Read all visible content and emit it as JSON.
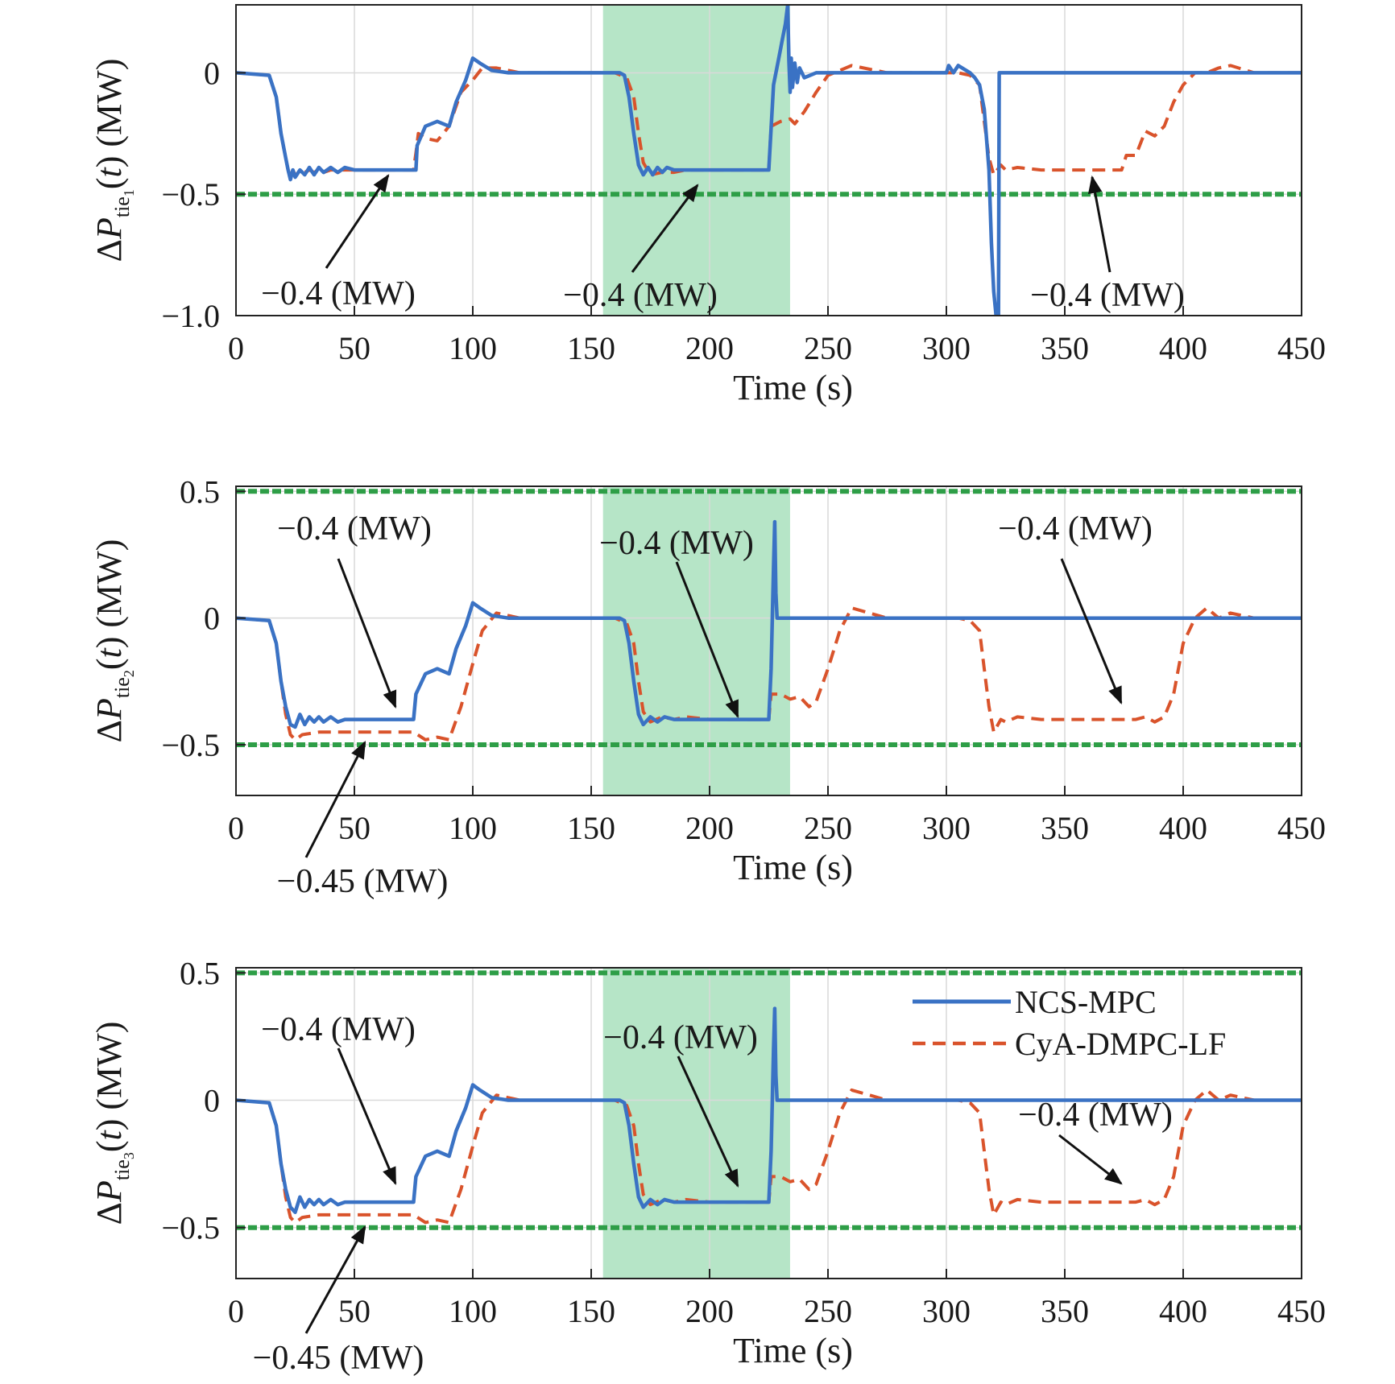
{
  "colors": {
    "ncs": "#3a72c4",
    "cya": "#d9532b",
    "limit": "#2e9e47",
    "shade": "#a9e0bd",
    "grid": "#d9d9d9",
    "axis": "#222222",
    "arrow": "#111111"
  },
  "legend": {
    "ncs_label": "NCS-MPC",
    "cya_label": "CyA-DMPC-LF",
    "placement": "top-right of panel 3"
  },
  "chart_data": [
    {
      "type": "line",
      "ylabel_prefix": "ΔP",
      "ylabel_sub": "tie",
      "ylabel_subsub": "1",
      "ylabel_suffix": "(t) (MW)",
      "xlabel": "Time (s)",
      "xlim": [
        0,
        450
      ],
      "ylim": [
        -1.0,
        0.28
      ],
      "xticks": [
        0,
        50,
        100,
        150,
        200,
        250,
        300,
        350,
        400,
        450
      ],
      "xtick_labels": [
        "0",
        "50",
        "100",
        "150",
        "200",
        "250",
        "300",
        "350",
        "400",
        "450"
      ],
      "yticks": [
        0,
        -0.5,
        -1.0
      ],
      "ytick_labels": [
        "0",
        "−0.5",
        "−1.0"
      ],
      "grid": true,
      "shaded_x": [
        155,
        234
      ],
      "limits": [
        -0.5
      ],
      "series": [
        {
          "name": "NCS-MPC",
          "style": "solid",
          "x": [
            0,
            14,
            17,
            19,
            21,
            22,
            23,
            24,
            25,
            27,
            29,
            31,
            33,
            35,
            37,
            40,
            43,
            46,
            50,
            55,
            60,
            65,
            70,
            76,
            76.5,
            80,
            85,
            90,
            93,
            97,
            100,
            103,
            108,
            115,
            125,
            140,
            150,
            162,
            164,
            166,
            168,
            170,
            172,
            174,
            176,
            178,
            180,
            182,
            185,
            190,
            200,
            210,
            225,
            227,
            229,
            231,
            232,
            233,
            233.5,
            234,
            234.5,
            235,
            236,
            237,
            238,
            240,
            245,
            250,
            260,
            280,
            300,
            301,
            303,
            305,
            310,
            312,
            314,
            316,
            318,
            319,
            320,
            321,
            322,
            322.3,
            330,
            350,
            400,
            450
          ],
          "y": [
            0,
            -0.01,
            -0.1,
            -0.25,
            -0.35,
            -0.4,
            -0.44,
            -0.4,
            -0.43,
            -0.4,
            -0.42,
            -0.39,
            -0.42,
            -0.39,
            -0.41,
            -0.39,
            -0.41,
            -0.39,
            -0.4,
            -0.4,
            -0.4,
            -0.4,
            -0.4,
            -0.4,
            -0.3,
            -0.22,
            -0.2,
            -0.22,
            -0.12,
            -0.03,
            0.06,
            0.04,
            0.01,
            0.0,
            0.0,
            0.0,
            0.0,
            0.0,
            -0.01,
            -0.1,
            -0.25,
            -0.38,
            -0.42,
            -0.39,
            -0.42,
            -0.39,
            -0.41,
            -0.39,
            -0.4,
            -0.4,
            -0.4,
            -0.4,
            -0.4,
            -0.05,
            0.05,
            0.15,
            0.2,
            0.28,
            0.05,
            -0.08,
            0.06,
            -0.06,
            0.04,
            -0.04,
            0.02,
            -0.02,
            0.0,
            0.0,
            0.0,
            0.0,
            0.0,
            0.03,
            0.0,
            0.03,
            0.0,
            -0.02,
            -0.05,
            -0.15,
            -0.4,
            -0.7,
            -0.9,
            -1.0,
            -1.0,
            0.0,
            0.0,
            0.0,
            0.0,
            0.0
          ]
        },
        {
          "name": "CyA-DMPC-LF",
          "style": "dashed",
          "x": [
            0,
            14,
            17,
            19,
            21,
            22,
            23,
            24,
            25,
            27,
            29,
            31,
            33,
            35,
            37,
            40,
            43,
            46,
            50,
            55,
            60,
            65,
            70,
            75,
            76,
            77,
            80,
            85,
            90,
            95,
            100,
            104,
            110,
            120,
            140,
            160,
            165,
            168,
            170,
            172,
            175,
            180,
            185,
            190,
            200,
            210,
            220,
            225,
            226,
            230,
            234,
            236,
            240,
            245,
            250,
            260,
            275,
            290,
            305,
            310,
            314,
            316,
            318,
            320,
            323,
            325,
            330,
            340,
            350,
            360,
            370,
            374,
            376,
            380,
            384,
            388,
            392,
            396,
            400,
            405,
            410,
            415,
            420,
            430,
            450
          ],
          "y": [
            0,
            -0.01,
            -0.1,
            -0.25,
            -0.35,
            -0.4,
            -0.43,
            -0.4,
            -0.42,
            -0.41,
            -0.41,
            -0.4,
            -0.41,
            -0.4,
            -0.41,
            -0.4,
            -0.4,
            -0.4,
            -0.4,
            -0.4,
            -0.4,
            -0.4,
            -0.4,
            -0.4,
            -0.33,
            -0.25,
            -0.27,
            -0.28,
            -0.22,
            -0.08,
            -0.03,
            0.02,
            0.02,
            0.0,
            0.0,
            0.0,
            -0.02,
            -0.1,
            -0.25,
            -0.37,
            -0.42,
            -0.41,
            -0.41,
            -0.4,
            -0.4,
            -0.4,
            -0.4,
            -0.4,
            -0.22,
            -0.2,
            -0.19,
            -0.21,
            -0.16,
            -0.08,
            -0.01,
            0.03,
            0.0,
            0.0,
            0.0,
            -0.01,
            -0.05,
            -0.2,
            -0.35,
            -0.42,
            -0.38,
            -0.4,
            -0.39,
            -0.4,
            -0.4,
            -0.4,
            -0.4,
            -0.4,
            -0.34,
            -0.34,
            -0.24,
            -0.26,
            -0.22,
            -0.12,
            -0.05,
            0.0,
            0.0,
            0.02,
            0.03,
            0.0,
            0.0
          ]
        }
      ],
      "annotations": [
        {
          "text": "−0.4 (MW)"
        },
        {
          "text": "−0.4 (MW)"
        },
        {
          "text": "−0.4 (MW)"
        }
      ]
    },
    {
      "type": "line",
      "ylabel_prefix": "ΔP",
      "ylabel_sub": "tie",
      "ylabel_subsub": "2",
      "ylabel_suffix": "(t) (MW)",
      "xlabel": "Time (s)",
      "xlim": [
        0,
        450
      ],
      "ylim": [
        -0.7,
        0.52
      ],
      "xticks": [
        0,
        50,
        100,
        150,
        200,
        250,
        300,
        350,
        400,
        450
      ],
      "xtick_labels": [
        "0",
        "50",
        "100",
        "150",
        "200",
        "250",
        "300",
        "350",
        "400",
        "450"
      ],
      "yticks": [
        0.5,
        0,
        -0.5
      ],
      "ytick_labels": [
        "0.5",
        "0",
        "−0.5"
      ],
      "grid": true,
      "shaded_x": [
        155,
        234
      ],
      "limits": [
        0.5,
        -0.5
      ],
      "series": [
        {
          "name": "NCS-MPC",
          "style": "solid",
          "x": [
            0,
            14,
            17,
            19,
            21,
            23,
            25,
            27,
            29,
            31,
            33,
            35,
            37,
            40,
            43,
            46,
            50,
            55,
            60,
            65,
            70,
            75,
            76,
            80,
            85,
            90,
            93,
            97,
            100,
            103,
            108,
            115,
            125,
            140,
            150,
            162,
            164,
            166,
            168,
            170,
            172,
            175,
            178,
            181,
            185,
            190,
            200,
            210,
            220,
            225,
            226,
            227,
            227.5,
            228,
            228.5,
            230,
            240,
            260,
            300,
            450
          ],
          "y": [
            0,
            -0.01,
            -0.1,
            -0.25,
            -0.35,
            -0.42,
            -0.43,
            -0.38,
            -0.42,
            -0.39,
            -0.41,
            -0.39,
            -0.41,
            -0.39,
            -0.41,
            -0.4,
            -0.4,
            -0.4,
            -0.4,
            -0.4,
            -0.4,
            -0.4,
            -0.3,
            -0.22,
            -0.2,
            -0.22,
            -0.12,
            -0.03,
            0.06,
            0.04,
            0.01,
            0.0,
            0.0,
            0.0,
            0.0,
            0.0,
            -0.01,
            -0.1,
            -0.25,
            -0.38,
            -0.42,
            -0.39,
            -0.41,
            -0.39,
            -0.4,
            -0.4,
            -0.4,
            -0.4,
            -0.4,
            -0.4,
            -0.2,
            0.2,
            0.38,
            0.1,
            0.0,
            0.0,
            0.0,
            0.0,
            0.0,
            0.0
          ]
        },
        {
          "name": "CyA-DMPC-LF",
          "style": "dashed",
          "x": [
            0,
            14,
            17,
            19,
            21,
            23,
            25,
            28,
            35,
            45,
            55,
            65,
            75,
            80,
            85,
            90,
            95,
            100,
            104,
            110,
            120,
            140,
            160,
            165,
            168,
            170,
            172,
            175,
            180,
            185,
            190,
            200,
            210,
            220,
            225,
            226,
            230,
            234,
            238,
            242,
            245,
            250,
            255,
            260,
            275,
            290,
            305,
            310,
            314,
            316,
            318,
            320,
            323,
            325,
            330,
            340,
            350,
            360,
            370,
            380,
            384,
            388,
            392,
            396,
            400,
            405,
            410,
            415,
            420,
            430,
            450
          ],
          "y": [
            0,
            -0.01,
            -0.1,
            -0.25,
            -0.38,
            -0.46,
            -0.48,
            -0.46,
            -0.45,
            -0.45,
            -0.45,
            -0.45,
            -0.45,
            -0.48,
            -0.47,
            -0.48,
            -0.35,
            -0.18,
            -0.05,
            0.02,
            0.0,
            0.0,
            0.0,
            -0.02,
            -0.1,
            -0.25,
            -0.37,
            -0.41,
            -0.39,
            -0.4,
            -0.39,
            -0.4,
            -0.4,
            -0.4,
            -0.4,
            -0.3,
            -0.3,
            -0.32,
            -0.31,
            -0.35,
            -0.33,
            -0.2,
            -0.05,
            0.04,
            0.0,
            0.0,
            0.0,
            -0.01,
            -0.05,
            -0.2,
            -0.35,
            -0.45,
            -0.4,
            -0.41,
            -0.39,
            -0.4,
            -0.4,
            -0.4,
            -0.4,
            -0.4,
            -0.39,
            -0.41,
            -0.39,
            -0.3,
            -0.1,
            0.0,
            0.04,
            0.0,
            0.02,
            0.0,
            0.0
          ]
        }
      ],
      "annotations": [
        {
          "text": "−0.4 (MW)"
        },
        {
          "text": "−0.45 (MW)"
        },
        {
          "text": "−0.4 (MW)"
        },
        {
          "text": "−0.4 (MW)"
        }
      ]
    },
    {
      "type": "line",
      "ylabel_prefix": "ΔP",
      "ylabel_sub": "tie",
      "ylabel_subsub": "3",
      "ylabel_suffix": "(t) (MW)",
      "xlabel": "Time (s)",
      "xlim": [
        0,
        450
      ],
      "ylim": [
        -0.7,
        0.52
      ],
      "xticks": [
        0,
        50,
        100,
        150,
        200,
        250,
        300,
        350,
        400,
        450
      ],
      "xtick_labels": [
        "0",
        "50",
        "100",
        "150",
        "200",
        "250",
        "300",
        "350",
        "400",
        "450"
      ],
      "yticks": [
        0.5,
        0,
        -0.5
      ],
      "ytick_labels": [
        "0.5",
        "0",
        "−0.5"
      ],
      "grid": true,
      "shaded_x": [
        155,
        234
      ],
      "limits": [
        0.5,
        -0.5
      ],
      "series": [
        {
          "name": "NCS-MPC",
          "style": "solid",
          "x": [
            0,
            14,
            17,
            19,
            21,
            23,
            25,
            27,
            29,
            31,
            33,
            35,
            37,
            40,
            43,
            46,
            50,
            55,
            60,
            65,
            70,
            75,
            76,
            80,
            85,
            90,
            93,
            97,
            100,
            103,
            108,
            115,
            125,
            140,
            150,
            162,
            164,
            166,
            168,
            170,
            172,
            175,
            178,
            181,
            185,
            190,
            200,
            210,
            220,
            225,
            226,
            227,
            227.5,
            228,
            228.5,
            230,
            240,
            260,
            300,
            450
          ],
          "y": [
            0,
            -0.01,
            -0.1,
            -0.25,
            -0.35,
            -0.42,
            -0.44,
            -0.38,
            -0.42,
            -0.39,
            -0.41,
            -0.39,
            -0.41,
            -0.39,
            -0.41,
            -0.4,
            -0.4,
            -0.4,
            -0.4,
            -0.4,
            -0.4,
            -0.4,
            -0.3,
            -0.22,
            -0.2,
            -0.22,
            -0.12,
            -0.03,
            0.06,
            0.04,
            0.01,
            0.0,
            0.0,
            0.0,
            0.0,
            0.0,
            -0.01,
            -0.1,
            -0.25,
            -0.38,
            -0.42,
            -0.39,
            -0.41,
            -0.39,
            -0.4,
            -0.4,
            -0.4,
            -0.4,
            -0.4,
            -0.4,
            -0.2,
            0.2,
            0.36,
            0.1,
            0.0,
            0.0,
            0.0,
            0.0,
            0.0,
            0.0
          ]
        },
        {
          "name": "CyA-DMPC-LF",
          "style": "dashed",
          "x": [
            0,
            14,
            17,
            19,
            21,
            23,
            25,
            28,
            35,
            45,
            55,
            65,
            75,
            80,
            85,
            90,
            95,
            100,
            104,
            110,
            120,
            140,
            160,
            165,
            168,
            170,
            172,
            175,
            180,
            185,
            190,
            200,
            210,
            220,
            225,
            226,
            230,
            234,
            238,
            242,
            245,
            250,
            255,
            260,
            275,
            290,
            305,
            310,
            314,
            316,
            318,
            320,
            323,
            325,
            330,
            340,
            350,
            360,
            370,
            380,
            384,
            388,
            392,
            396,
            400,
            405,
            410,
            415,
            420,
            430,
            450
          ],
          "y": [
            0,
            -0.01,
            -0.1,
            -0.25,
            -0.38,
            -0.46,
            -0.48,
            -0.46,
            -0.45,
            -0.45,
            -0.45,
            -0.45,
            -0.45,
            -0.48,
            -0.47,
            -0.48,
            -0.35,
            -0.18,
            -0.05,
            0.02,
            0.0,
            0.0,
            0.0,
            -0.02,
            -0.1,
            -0.25,
            -0.37,
            -0.41,
            -0.39,
            -0.4,
            -0.39,
            -0.4,
            -0.4,
            -0.4,
            -0.4,
            -0.3,
            -0.3,
            -0.32,
            -0.31,
            -0.35,
            -0.33,
            -0.2,
            -0.05,
            0.04,
            0.0,
            0.0,
            0.0,
            -0.01,
            -0.05,
            -0.2,
            -0.35,
            -0.45,
            -0.4,
            -0.41,
            -0.39,
            -0.4,
            -0.4,
            -0.4,
            -0.4,
            -0.4,
            -0.39,
            -0.41,
            -0.39,
            -0.3,
            -0.1,
            0.0,
            0.04,
            0.0,
            0.02,
            0.0,
            0.0
          ]
        }
      ],
      "annotations": [
        {
          "text": "−0.4 (MW)"
        },
        {
          "text": "−0.45 (MW)"
        },
        {
          "text": "−0.4 (MW)"
        },
        {
          "text": "−0.4 (MW)"
        }
      ]
    }
  ]
}
